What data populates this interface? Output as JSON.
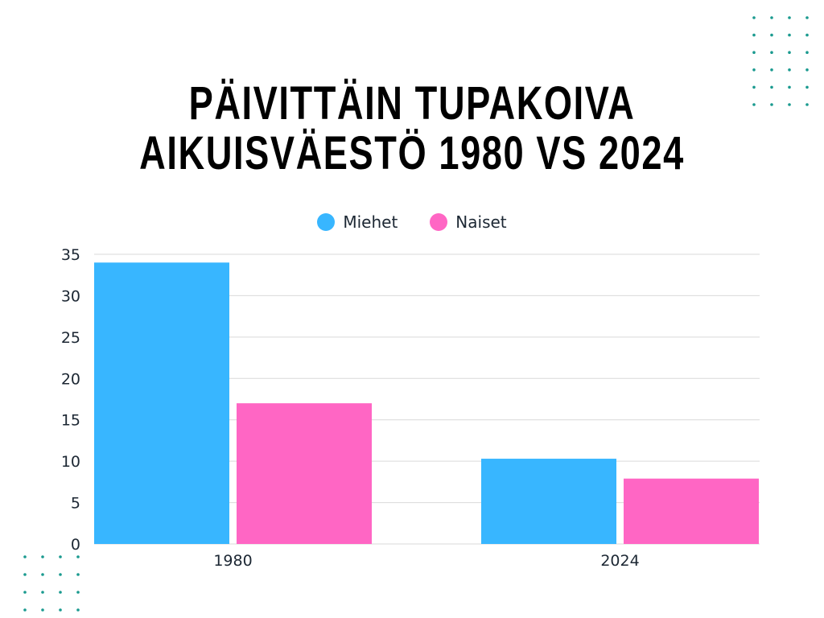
{
  "title_line1": "PÄIVITTÄIN TUPAKOIVA",
  "title_line2": "AIKUISVÄESTÖ 1980 VS 2024",
  "colors": {
    "miehet": "#38b6ff",
    "naiset": "#ff66c4",
    "grid": "#d9d9d9",
    "dots": "#1a9a8f"
  },
  "chart_data": {
    "type": "bar",
    "title": "PÄIVITTÄIN TUPAKOIVA AIKUISVÄESTÖ 1980 VS 2024",
    "categories": [
      "1980",
      "2024"
    ],
    "series": [
      {
        "name": "Miehet",
        "values": [
          34,
          10.3
        ]
      },
      {
        "name": "Naiset",
        "values": [
          17,
          7.9
        ]
      }
    ],
    "ylim": [
      0,
      35
    ],
    "yticks": [
      0,
      5,
      10,
      15,
      20,
      25,
      30,
      35
    ],
    "grid": true,
    "legend_position": "top"
  }
}
